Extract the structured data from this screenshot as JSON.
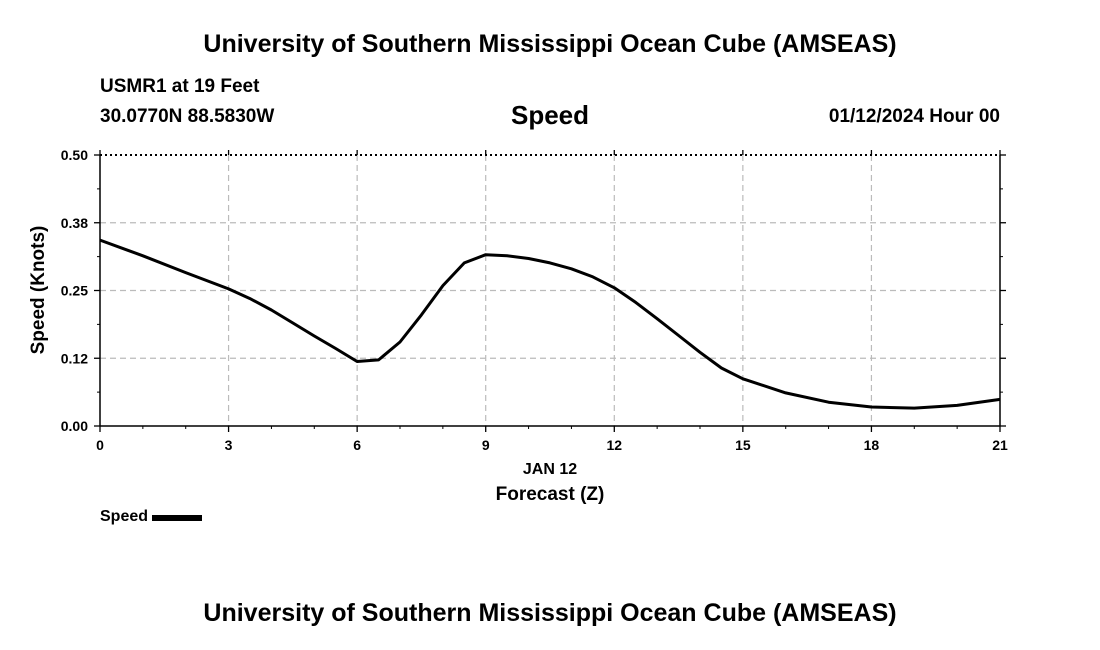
{
  "header": {
    "title_top": "University of Southern Mississippi Ocean Cube (AMSEAS)",
    "station": "USMR1 at 19 Feet",
    "location": "30.0770N  88.5830W",
    "variable": "Speed",
    "datetime": "01/12/2024 Hour 00"
  },
  "footer": {
    "title_bottom": "University of Southern Mississippi Ocean Cube (AMSEAS)"
  },
  "legend": {
    "label": "Speed"
  },
  "chart_data": {
    "type": "line",
    "title": "Speed",
    "xlabel": "Forecast (Z)",
    "xlabel_date": "JAN 12",
    "ylabel": "Speed (Knots)",
    "xlim": [
      0,
      21
    ],
    "ylim": [
      0,
      0.5
    ],
    "xticks": [
      0,
      3,
      6,
      9,
      12,
      15,
      18,
      21
    ],
    "xtick_labels": [
      "0",
      "3",
      "6",
      "9",
      "12",
      "15",
      "18",
      "21"
    ],
    "yticks": [
      0,
      0.125,
      0.25,
      0.375,
      0.5
    ],
    "ytick_labels": [
      "0.00",
      "0.12",
      "0.25",
      "0.38",
      "0.50"
    ],
    "grid": true,
    "series": [
      {
        "name": "Speed",
        "color": "#000000",
        "x": [
          0,
          1,
          2,
          3,
          3.5,
          4,
          4.5,
          5,
          5.5,
          6,
          6.5,
          7,
          7.5,
          8,
          8.5,
          9,
          9.5,
          10,
          10.5,
          11,
          11.5,
          12,
          12.5,
          13,
          13.5,
          14,
          14.5,
          15,
          16,
          17,
          18,
          19,
          20,
          21
        ],
        "values": [
          0.343,
          0.314,
          0.283,
          0.253,
          0.235,
          0.214,
          0.19,
          0.166,
          0.143,
          0.119,
          0.122,
          0.155,
          0.205,
          0.259,
          0.301,
          0.316,
          0.314,
          0.309,
          0.301,
          0.29,
          0.275,
          0.255,
          0.228,
          0.198,
          0.167,
          0.136,
          0.107,
          0.087,
          0.061,
          0.044,
          0.035,
          0.033,
          0.038,
          0.049
        ]
      }
    ]
  }
}
